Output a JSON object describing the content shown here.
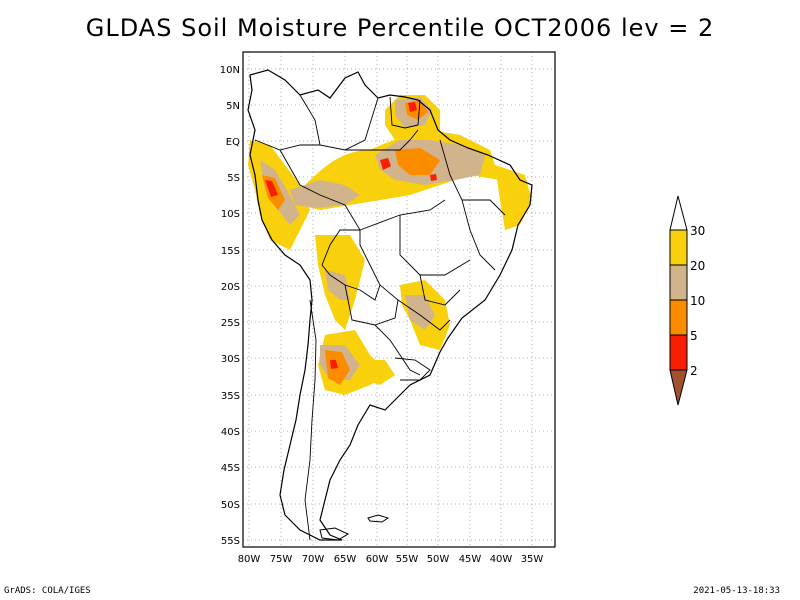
{
  "title": "GLDAS Soil Moisture Percentile OCT2006 lev = 2",
  "footer": {
    "left": "GrADS: COLA/IGES",
    "right": "2021-05-13-18:33"
  },
  "map": {
    "lat_labels": [
      "10N",
      "5N",
      "EQ",
      "5S",
      "10S",
      "15S",
      "20S",
      "25S",
      "30S",
      "35S",
      "40S",
      "45S",
      "50S",
      "55S"
    ],
    "lon_labels": [
      "80W",
      "75W",
      "70W",
      "65W",
      "60W",
      "55W",
      "50W",
      "45W",
      "40W",
      "35W"
    ],
    "extent": {
      "lon_min": -81,
      "lon_max": -32,
      "lat_min": -56,
      "lat_max": 12
    }
  },
  "legend": {
    "labels": [
      "30",
      "20",
      "10",
      "5",
      "2"
    ],
    "colors": {
      "above_30": "#ffffff",
      "20_30": "#f8d00c",
      "10_20": "#d2b48c",
      "5_10": "#fb8c00",
      "2_5": "#fa1e00",
      "below_2": "#a0522d"
    }
  }
}
